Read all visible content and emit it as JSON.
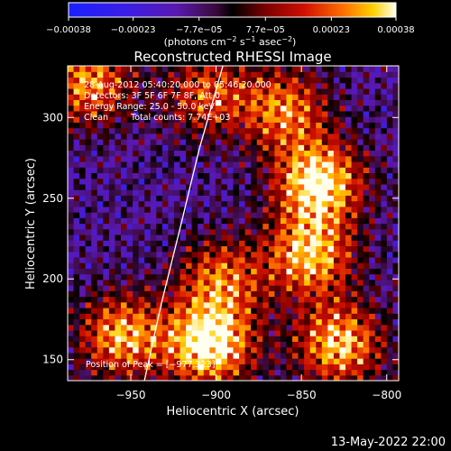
{
  "chart_data": {
    "type": "heatmap",
    "title": "Reconstructed RHESSI Image",
    "xlabel": "Heliocentric X (arcsec)",
    "ylabel": "Heliocentric Y (arcsec)",
    "xlim": [
      -987,
      -793
    ],
    "ylim": [
      137,
      332
    ],
    "x_ticks": [
      -950,
      -900,
      -850,
      -800
    ],
    "x_tick_labels": [
      "−950",
      "−900",
      "−850",
      "−800"
    ],
    "y_ticks": [
      150,
      200,
      250,
      300
    ],
    "y_tick_labels": [
      "150",
      "200",
      "250",
      "300"
    ],
    "colorbar": {
      "range": [
        -0.00038,
        0.00038
      ],
      "ticks": [
        -0.00038,
        -0.00023,
        -7.7e-05,
        7.7e-05,
        0.00023,
        0.00038
      ],
      "tick_labels": [
        "−0.00038",
        "−0.00023",
        "−7.7e−05",
        "7.7e−05",
        "0.00023",
        "0.00038"
      ],
      "unit_parts": {
        "a": "(photons cm",
        "b": "−2",
        "c": " s",
        "d": "−1",
        "e": " asec",
        "f": "−2",
        "g": ")"
      }
    },
    "info": {
      "time_range": "28-Aug-2012 05:40:20.000 to 05:46:20.000",
      "detectors": "Detectors: 3F 5F 6F 7F 8F, Att 0",
      "energy": "Energy Range: 25.0 - 50.0 keV",
      "algorithm": "Clean",
      "total_counts": "Total counts: 7.74E+03",
      "peak": "Position of Peak = [−977,323]"
    },
    "limb_curve": [
      [
        -942,
        137
      ],
      [
        -932,
        185
      ],
      [
        -921,
        232
      ],
      [
        -910,
        280
      ],
      [
        -896,
        332
      ]
    ],
    "emission_sources": [
      {
        "x": -904,
        "y": 160,
        "peak": 1.0
      },
      {
        "x": -955,
        "y": 165,
        "peak": 0.75
      },
      {
        "x": -897,
        "y": 200,
        "peak": 0.6
      },
      {
        "x": -840,
        "y": 260,
        "peak": 0.95
      },
      {
        "x": -845,
        "y": 215,
        "peak": 0.8
      },
      {
        "x": -828,
        "y": 160,
        "peak": 0.8
      },
      {
        "x": -860,
        "y": 305,
        "peak": 0.65
      },
      {
        "x": -975,
        "y": 322,
        "peak": 0.7
      },
      {
        "x": -905,
        "y": 315,
        "peak": 0.55
      }
    ],
    "footer_date": "13-May-2022 22:00"
  }
}
